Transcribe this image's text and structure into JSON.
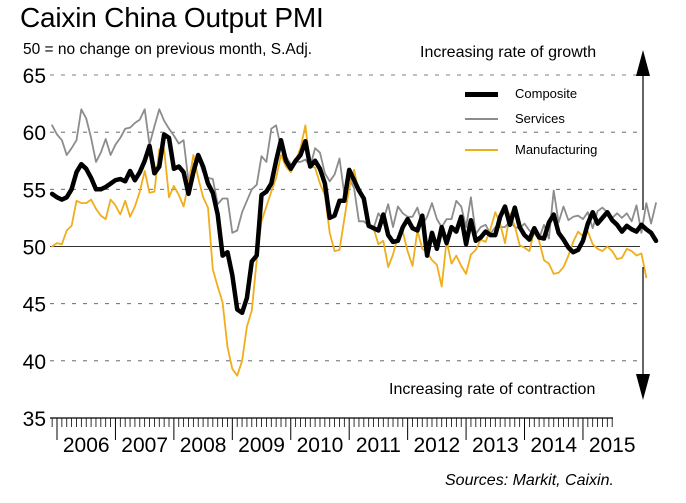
{
  "chart_data": {
    "type": "line",
    "title": "Caixin China Output PMI",
    "subtitle": "50 = no change on previous month, S.Adj.",
    "xlabel": "",
    "ylabel": "",
    "ylim": [
      35,
      65
    ],
    "yticks": [
      35,
      40,
      45,
      50,
      55,
      60,
      65
    ],
    "xtick_labels": [
      "2006",
      "2007",
      "2008",
      "2009",
      "2010",
      "2011",
      "2012",
      "2013",
      "2014",
      "2015"
    ],
    "x_start": "2005-12",
    "x_frequency": "monthly",
    "grid": true,
    "reference_line": 50,
    "legend_position": "top-right",
    "annotations": {
      "top": "Increasing rate of growth",
      "bottom": "Increasing rate of contraction"
    },
    "source": "Sources: Markit, Caixin.",
    "series": [
      {
        "name": "Composite",
        "color": "#000000",
        "values": [
          54.6,
          54.3,
          54.1,
          54.3,
          55.0,
          56.5,
          57.2,
          56.8,
          56.0,
          55.0,
          55.0,
          55.2,
          55.5,
          55.8,
          55.9,
          55.7,
          56.6,
          55.8,
          56.5,
          57.5,
          58.8,
          56.4,
          57.0,
          59.8,
          59.5,
          56.8,
          57.0,
          56.5,
          54.6,
          56.5,
          58.0,
          57.0,
          55.5,
          54.7,
          52.8,
          49.2,
          49.5,
          47.5,
          44.5,
          44.2,
          45.5,
          48.7,
          49.2,
          54.5,
          54.8,
          55.5,
          57.5,
          59.3,
          57.5,
          56.8,
          57.5,
          58.0,
          59.2,
          57.0,
          57.5,
          56.8,
          55.5,
          52.5,
          52.7,
          54.0,
          54.0,
          56.7,
          55.8,
          54.9,
          54.2,
          51.8,
          51.6,
          51.4,
          52.8,
          51.0,
          50.4,
          50.5,
          51.7,
          52.4,
          51.6,
          51.4,
          52.7,
          49.2,
          51.2,
          49.8,
          51.7,
          50.3,
          51.7,
          51.3,
          52.6,
          50.2,
          52.3,
          50.5,
          50.8,
          51.3,
          51.0,
          51.0,
          52.6,
          53.5,
          51.9,
          53.4,
          51.7,
          51.0,
          50.6,
          51.6,
          50.8,
          50.7,
          52.1,
          52.8,
          51.2,
          50.6,
          49.9,
          49.5,
          49.7,
          50.5,
          52.0,
          53.0,
          52.0,
          52.5,
          53.0,
          52.3,
          51.9,
          51.3,
          51.8,
          51.5,
          51.3,
          51.9,
          51.5,
          51.2,
          50.5
        ]
      },
      {
        "name": "Services",
        "color": "#8c8c8c",
        "values": [
          60.6,
          59.8,
          59.3,
          58.0,
          58.6,
          59.3,
          62.0,
          61.2,
          59.5,
          57.4,
          58.2,
          59.4,
          58.0,
          58.9,
          59.5,
          60.3,
          60.4,
          60.8,
          61.1,
          62.0,
          58.9,
          60.5,
          62.0,
          61.0,
          60.3,
          59.7,
          59.0,
          59.3,
          55.7,
          57.2,
          57.8,
          56.5,
          56.0,
          55.9,
          53.7,
          54.2,
          54.2,
          51.2,
          51.4,
          53.0,
          54.0,
          55.0,
          55.4,
          57.9,
          57.4,
          60.3,
          60.6,
          58.6,
          57.9,
          57.2,
          57.4,
          57.4,
          57.6,
          57.0,
          58.6,
          58.2,
          56.4,
          55.7,
          56.3,
          57.7,
          54.6,
          56.0,
          55.1,
          52.2,
          52.2,
          51.8,
          51.6,
          52.9,
          52.3,
          53.7,
          51.7,
          53.5,
          52.9,
          52.6,
          52.6,
          53.4,
          51.9,
          52.6,
          53.8,
          52.4,
          51.7,
          52.4,
          52.4,
          54.0,
          53.5,
          51.7,
          54.3,
          51.1,
          51.7,
          51.9,
          51.1,
          51.7,
          51.7,
          51.7,
          52.2,
          51.7,
          51.6,
          52.0,
          51.4,
          51.1,
          50.7,
          51.9,
          50.7,
          54.9,
          52.1,
          53.5,
          52.3,
          52.6,
          52.7,
          52.4,
          53.0,
          51.6,
          53.1,
          53.4,
          53.0,
          52.5,
          52.9,
          52.5,
          52.9,
          52.2,
          53.6,
          51.2,
          53.8,
          52.0,
          53.8
        ]
      },
      {
        "name": "Manufacturing",
        "color": "#f0ad1c",
        "values": [
          50.0,
          50.3,
          50.2,
          51.4,
          51.8,
          54.0,
          53.8,
          53.8,
          54.1,
          53.3,
          52.7,
          52.4,
          54.1,
          53.6,
          52.8,
          54.0,
          52.6,
          53.5,
          54.8,
          56.6,
          54.7,
          54.8,
          58.5,
          58.5,
          54.3,
          55.3,
          54.5,
          53.5,
          55.5,
          58.0,
          56.0,
          54.3,
          53.4,
          48.0,
          46.5,
          45.1,
          41.2,
          39.3,
          38.7,
          40.0,
          43.0,
          44.4,
          48.8,
          52.2,
          53.5,
          54.8,
          56.0,
          58.0,
          57.0,
          56.5,
          57.5,
          58.6,
          60.6,
          57.0,
          56.9,
          55.5,
          54.5,
          51.2,
          49.6,
          49.7,
          52.4,
          55.1,
          56.7,
          54.7,
          54.3,
          51.9,
          51.6,
          50.2,
          50.5,
          48.2,
          49.3,
          50.9,
          51.3,
          49.6,
          48.3,
          51.4,
          49.8,
          49.5,
          48.8,
          48.4,
          46.5,
          50.5,
          48.5,
          49.2,
          48.3,
          47.6,
          49.3,
          49.7,
          50.6,
          50.4,
          51.5,
          53.0,
          52.0,
          50.3,
          52.9,
          51.8,
          50.1,
          49.9,
          49.6,
          51.4,
          50.5,
          48.8,
          48.5,
          47.6,
          47.7,
          48.2,
          49.2,
          50.4,
          51.3,
          50.9,
          51.3,
          50.2,
          49.8,
          49.6,
          50.0,
          49.6,
          48.9,
          49.0,
          49.8,
          49.6,
          49.2,
          49.4,
          47.3
        ]
      }
    ]
  }
}
